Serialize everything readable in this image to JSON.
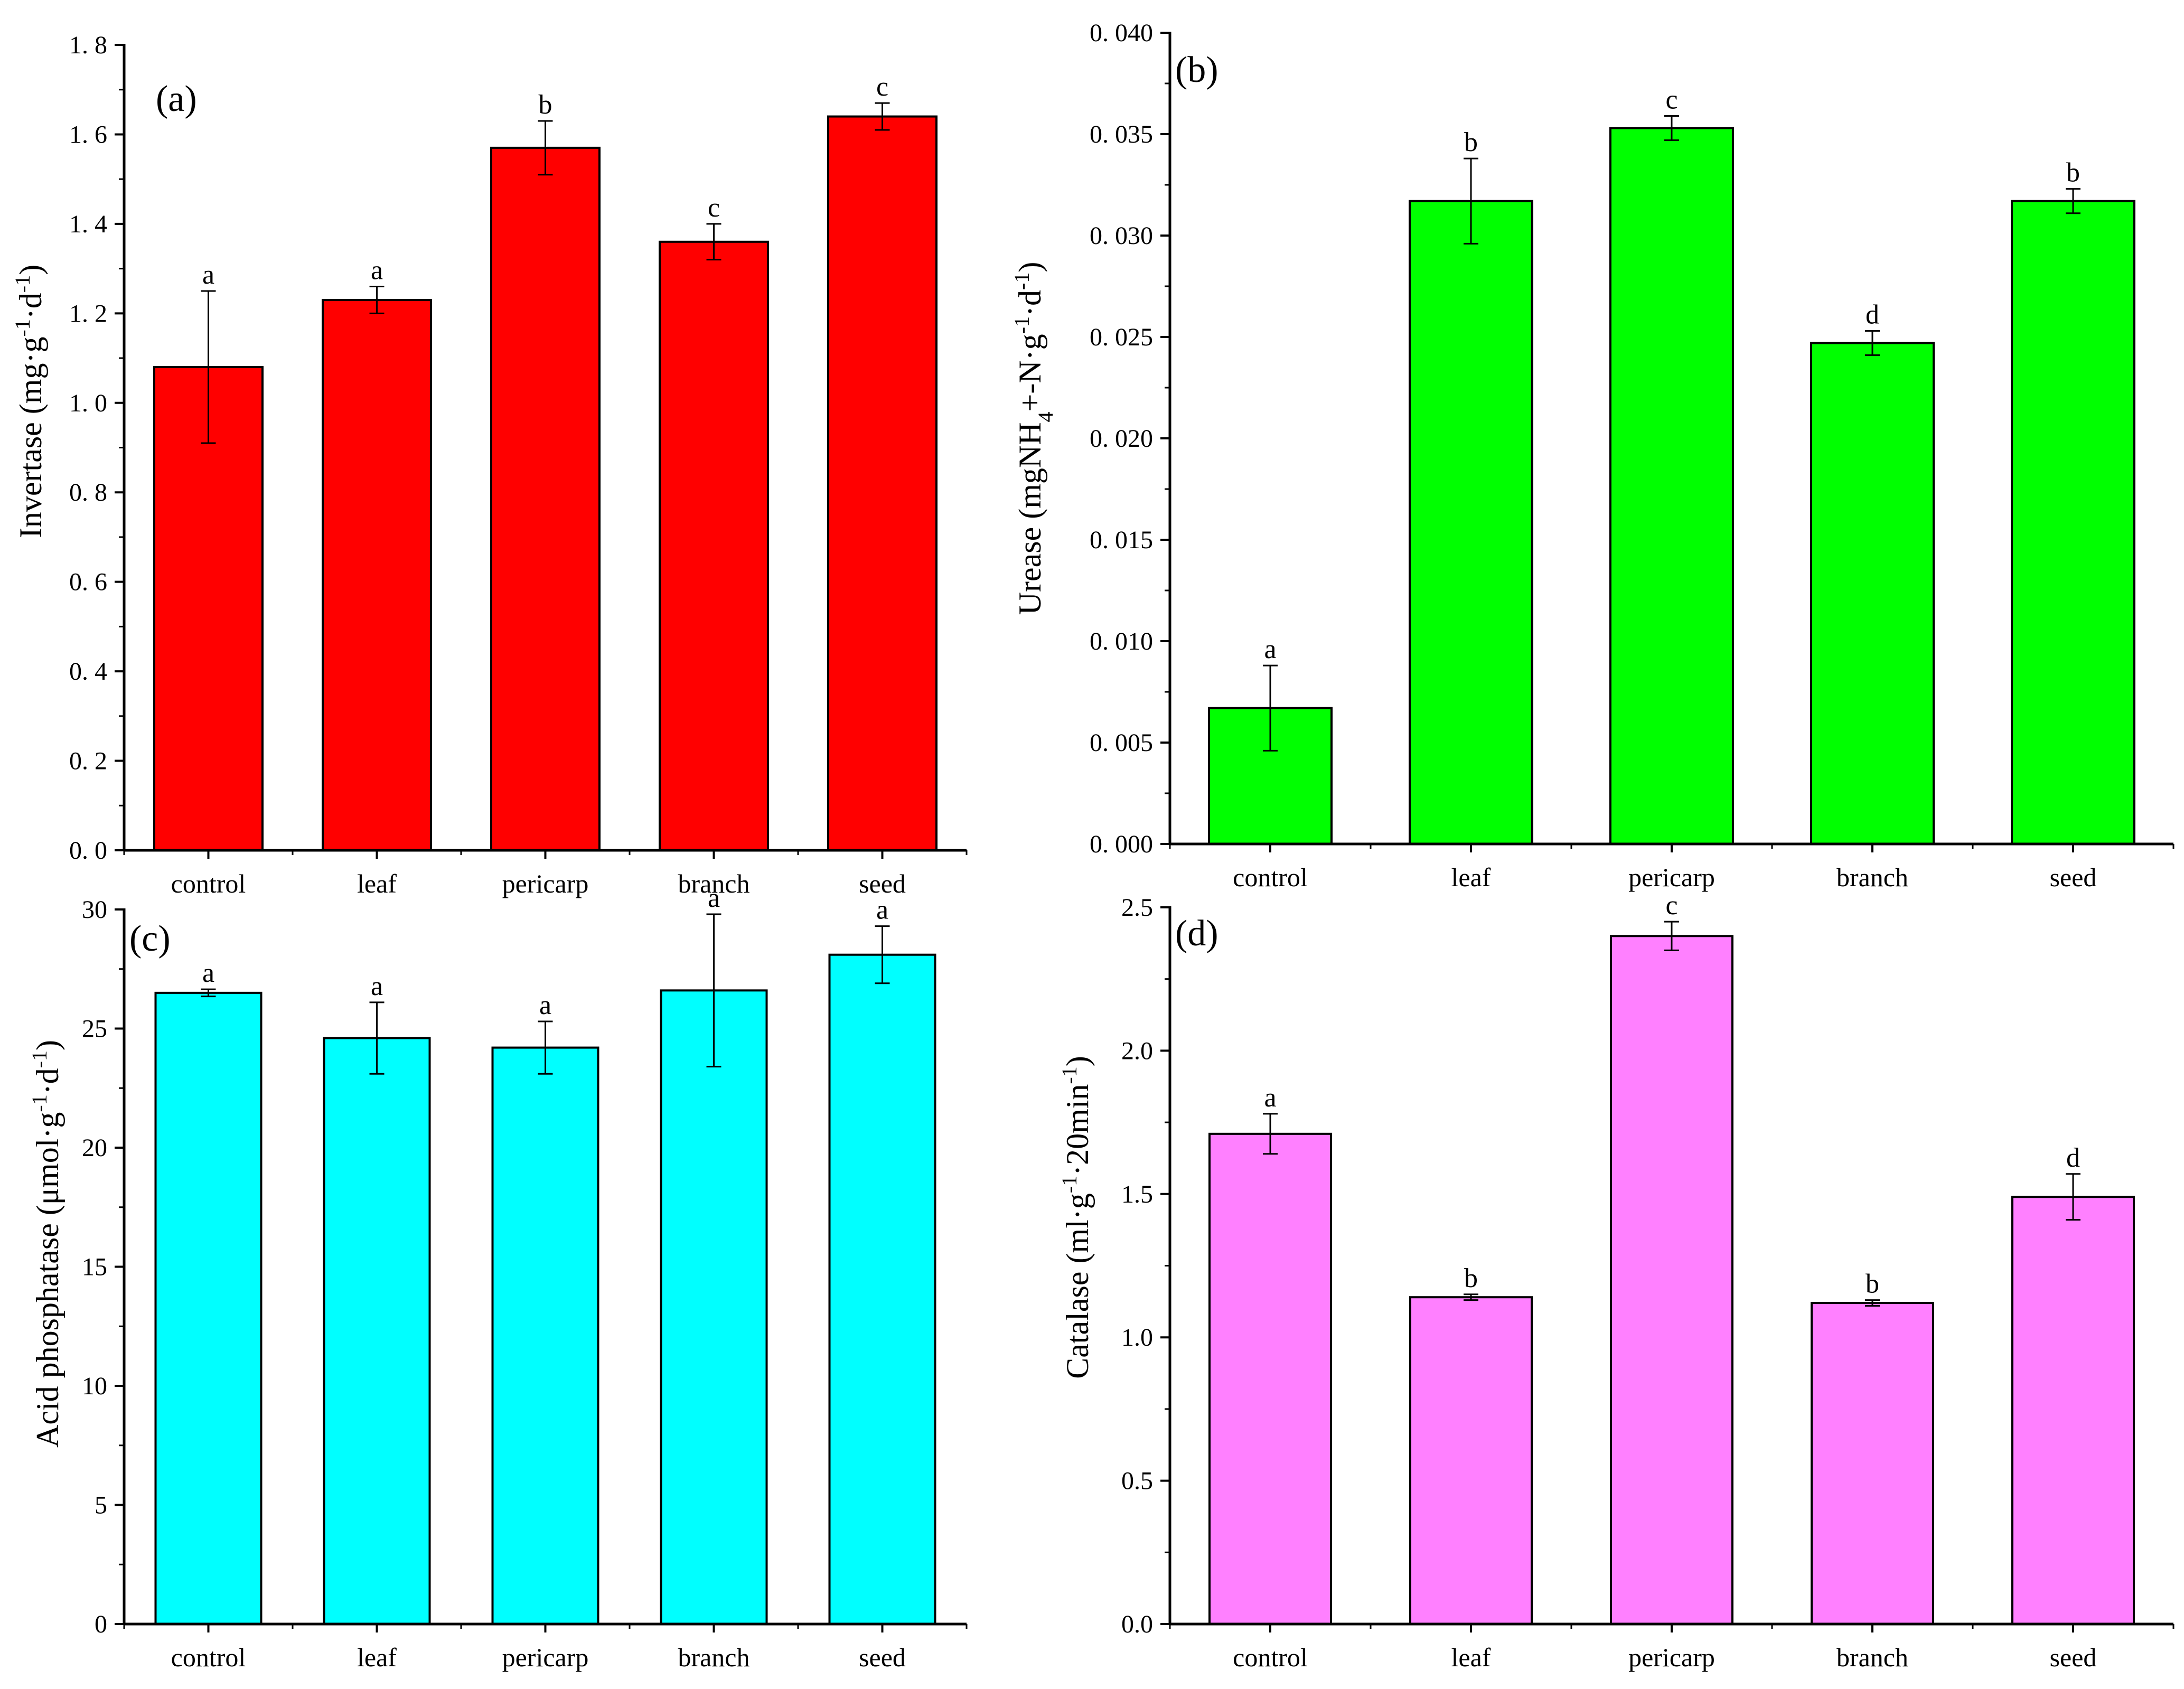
{
  "colors": {
    "a": "#ff0000",
    "b": "#00ff00",
    "c": "#00ffff",
    "d": "#ff80ff"
  },
  "chart_data": [
    {
      "id": "a",
      "type": "bar",
      "panel_label": "(a)",
      "categories": [
        "control",
        "leaf",
        "pericarp",
        "branch",
        "seed"
      ],
      "values": [
        1.08,
        1.23,
        1.57,
        1.36,
        1.64
      ],
      "errors": [
        0.17,
        0.03,
        0.06,
        0.04,
        0.03
      ],
      "letters": [
        "a",
        "a",
        "b",
        "c",
        "c"
      ],
      "ylabel": "Invertase (mg·g-1·d-1)",
      "ylim": [
        0,
        1.8
      ],
      "yticks": [
        0.0,
        0.2,
        0.4,
        0.6,
        0.8,
        1.0,
        1.2,
        1.4,
        1.6,
        1.8
      ],
      "ytick_labels": [
        "0. 0",
        "0. 2",
        "0. 4",
        "0. 6",
        "0. 8",
        "1. 0",
        "1. 2",
        "1. 4",
        "1. 6",
        "1. 8"
      ],
      "color": "#ff0000"
    },
    {
      "id": "b",
      "type": "bar",
      "panel_label": "(b)",
      "categories": [
        "control",
        "leaf",
        "pericarp",
        "branch",
        "seed"
      ],
      "values": [
        0.0067,
        0.0317,
        0.0353,
        0.0247,
        0.0317
      ],
      "errors": [
        0.0021,
        0.0021,
        0.0006,
        0.0006,
        0.0006
      ],
      "letters": [
        "a",
        "b",
        "c",
        "d",
        "b"
      ],
      "ylabel": "Urease (mgNH4+-N·g-1·d-1)",
      "ylim": [
        0,
        0.04
      ],
      "yticks": [
        0.0,
        0.005,
        0.01,
        0.015,
        0.02,
        0.025,
        0.03,
        0.035,
        0.04
      ],
      "ytick_labels": [
        "0. 000",
        "0. 005",
        "0. 010",
        "0. 015",
        "0. 020",
        "0. 025",
        "0. 030",
        "0. 035",
        "0. 040"
      ],
      "color": "#00ff00"
    },
    {
      "id": "c",
      "type": "bar",
      "panel_label": "(c)",
      "categories": [
        "control",
        "leaf",
        "pericarp",
        "branch",
        "seed"
      ],
      "values": [
        26.5,
        24.6,
        24.2,
        26.6,
        28.1
      ],
      "errors": [
        0.15,
        1.5,
        1.1,
        3.2,
        1.2
      ],
      "letters": [
        "a",
        "a",
        "a",
        "a",
        "a"
      ],
      "ylabel": "Acid phosphatase (μmol·g-1·d-1)",
      "ylim": [
        0,
        30
      ],
      "yticks": [
        0,
        5,
        10,
        15,
        20,
        25,
        30
      ],
      "ytick_labels": [
        "0",
        "5",
        "10",
        "15",
        "20",
        "25",
        "30"
      ],
      "color": "#00ffff"
    },
    {
      "id": "d",
      "type": "bar",
      "panel_label": "(d)",
      "categories": [
        "control",
        "leaf",
        "pericarp",
        "branch",
        "seed"
      ],
      "values": [
        1.71,
        1.14,
        2.4,
        1.12,
        1.49
      ],
      "errors": [
        0.07,
        0.01,
        0.05,
        0.01,
        0.08
      ],
      "letters": [
        "a",
        "b",
        "c",
        "b",
        "d"
      ],
      "ylabel": "Catalase (ml·g-1·20min-1)",
      "ylim": [
        0,
        2.5
      ],
      "yticks": [
        0.0,
        0.5,
        1.0,
        1.5,
        2.0,
        2.5
      ],
      "ytick_labels": [
        "0.0",
        "0.5",
        "1.0",
        "1.5",
        "2.0",
        "2.5"
      ],
      "color": "#ff80ff"
    }
  ]
}
